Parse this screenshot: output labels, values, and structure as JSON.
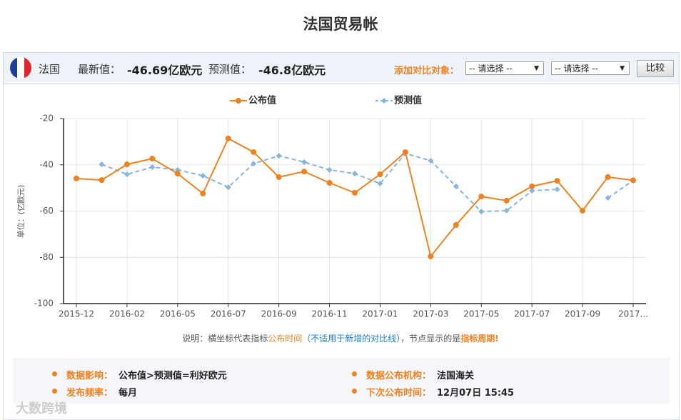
{
  "header": {
    "title": "法国贸易帐"
  },
  "toolbar": {
    "country": "法国",
    "latest_label": "最新值：",
    "latest_value": "-46.69亿欧元",
    "forecast_label": "预测值：",
    "forecast_value": "-46.8亿欧元",
    "compare_label": "添加对比对象：",
    "select1": "-- 请选择 --",
    "select2": "-- 请选择 --",
    "button": "比较"
  },
  "chart_data": {
    "type": "line",
    "ylabel": "单位：(亿欧元)",
    "categories": [
      "2015-12",
      null,
      "2016-02",
      null,
      "2016-05",
      null,
      "2016-07",
      null,
      "2016-09",
      null,
      "2016-11",
      null,
      "2017-01",
      null,
      "2017-03",
      null,
      "2017-05",
      null,
      "2017-07",
      null,
      "2017-09",
      null,
      "2017..."
    ],
    "series": [
      {
        "name": "公布值",
        "color": "#ef8220",
        "dashed": false,
        "marker": "circle",
        "values": [
          -45.9,
          -46.6,
          -39.8,
          -37.3,
          -43.8,
          -52.4,
          -28.6,
          -34.5,
          -45.3,
          -42.9,
          -47.8,
          -52.1,
          -44.1,
          -34.5,
          -79.6,
          -66.0,
          -53.7,
          -55.5,
          -49.3,
          -46.9,
          -59.8,
          -45.3,
          -46.69
        ]
      },
      {
        "name": "预测值",
        "color": "#86b5e0",
        "dashed": true,
        "marker": "diamond",
        "values": [
          null,
          -39.8,
          -44.1,
          -41.0,
          -42.2,
          -44.7,
          -49.7,
          -39.5,
          -36.1,
          -38.8,
          -42.2,
          -43.8,
          -48.1,
          -35.1,
          -38.2,
          -49.3,
          -60.2,
          -59.8,
          -51.2,
          -50.6,
          null,
          -54.3,
          -46.8
        ]
      }
    ],
    "ylim": [
      -100,
      -20
    ],
    "yticks": [
      -20,
      -40,
      -60,
      -80,
      -100
    ],
    "grid": true
  },
  "note": {
    "parts": [
      "说明：横坐标代表指标",
      "公布时间",
      "（不适用于新增的对比线）",
      "，节点显示的是",
      "指标周期!"
    ]
  },
  "info": [
    {
      "label": "数据影响：",
      "value": "公布值>预测值=利好欧元"
    },
    {
      "label": "数据公布机构：",
      "value": "法国海关"
    },
    {
      "label": "发布频率：",
      "value": "每月"
    },
    {
      "label": "下次公布时间：",
      "value": "12月07日 15:45"
    }
  ],
  "watermark": "大数跨境"
}
